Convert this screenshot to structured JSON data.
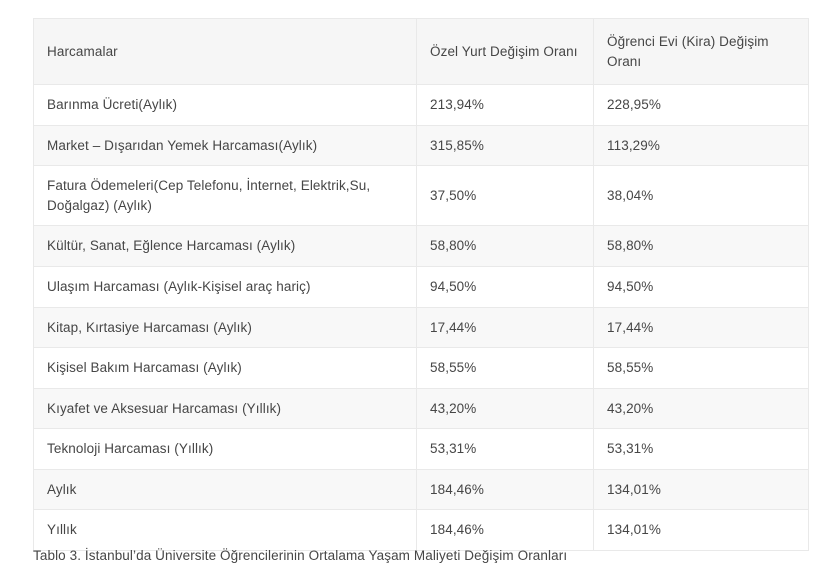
{
  "table": {
    "columns": [
      "Harcamalar",
      "Özel Yurt Değişim Oranı",
      "Öğrenci Evi (Kira) Değişim Oranı"
    ],
    "rows": [
      [
        "Barınma Ücreti(Aylık)",
        "213,94%",
        "228,95%"
      ],
      [
        "Market – Dışarıdan Yemek Harcaması(Aylık)",
        "315,85%",
        "113,29%"
      ],
      [
        "Fatura Ödemeleri(Cep Telefonu, İnternet, Elektrik,Su, Doğalgaz) (Aylık)",
        "37,50%",
        "38,04%"
      ],
      [
        "Kültür, Sanat, Eğlence Harcaması (Aylık)",
        "58,80%",
        "58,80%"
      ],
      [
        "Ulaşım Harcaması (Aylık-Kişisel araç hariç)",
        "94,50%",
        "94,50%"
      ],
      [
        "Kitap, Kırtasiye Harcaması (Aylık)",
        "17,44%",
        "17,44%"
      ],
      [
        "Kişisel Bakım Harcaması (Aylık)",
        "58,55%",
        "58,55%"
      ],
      [
        "Kıyafet ve Aksesuar Harcaması (Yıllık)",
        "43,20%",
        "43,20%"
      ],
      [
        "Teknoloji Harcaması (Yıllık)",
        "53,31%",
        "53,31%"
      ],
      [
        "Aylık",
        "184,46%",
        "134,01%"
      ],
      [
        "Yıllık",
        "184,46%",
        "134,01%"
      ]
    ]
  },
  "caption": "Tablo 3. İstanbul’da Üniversite Öğrencilerinin Ortalama Yaşam Maliyeti Değişim Oranları",
  "colors": {
    "stripe": "#f8f8f8",
    "header_background": "#f6f6f6",
    "border": "#e9e9e9",
    "text": "#464646"
  }
}
